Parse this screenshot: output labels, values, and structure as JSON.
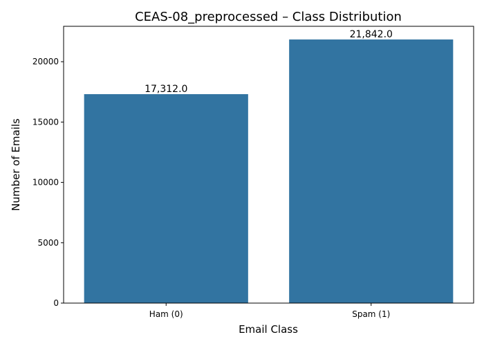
{
  "chart_data": {
    "type": "bar",
    "title": "CEAS-08_preprocessed – Class Distribution",
    "xlabel": "Email Class",
    "ylabel": "Number of Emails",
    "categories": [
      "Ham (0)",
      "Spam (1)"
    ],
    "values": [
      17312,
      21842
    ],
    "data_labels": [
      "17,312.0",
      "21,842.0"
    ],
    "yticks": [
      0,
      5000,
      10000,
      15000,
      20000
    ],
    "ytick_labels": [
      "0",
      "5000",
      "10000",
      "15000",
      "20000"
    ],
    "ylim": [
      0,
      22934
    ],
    "grid": false,
    "bar_color": "#3274a1"
  }
}
